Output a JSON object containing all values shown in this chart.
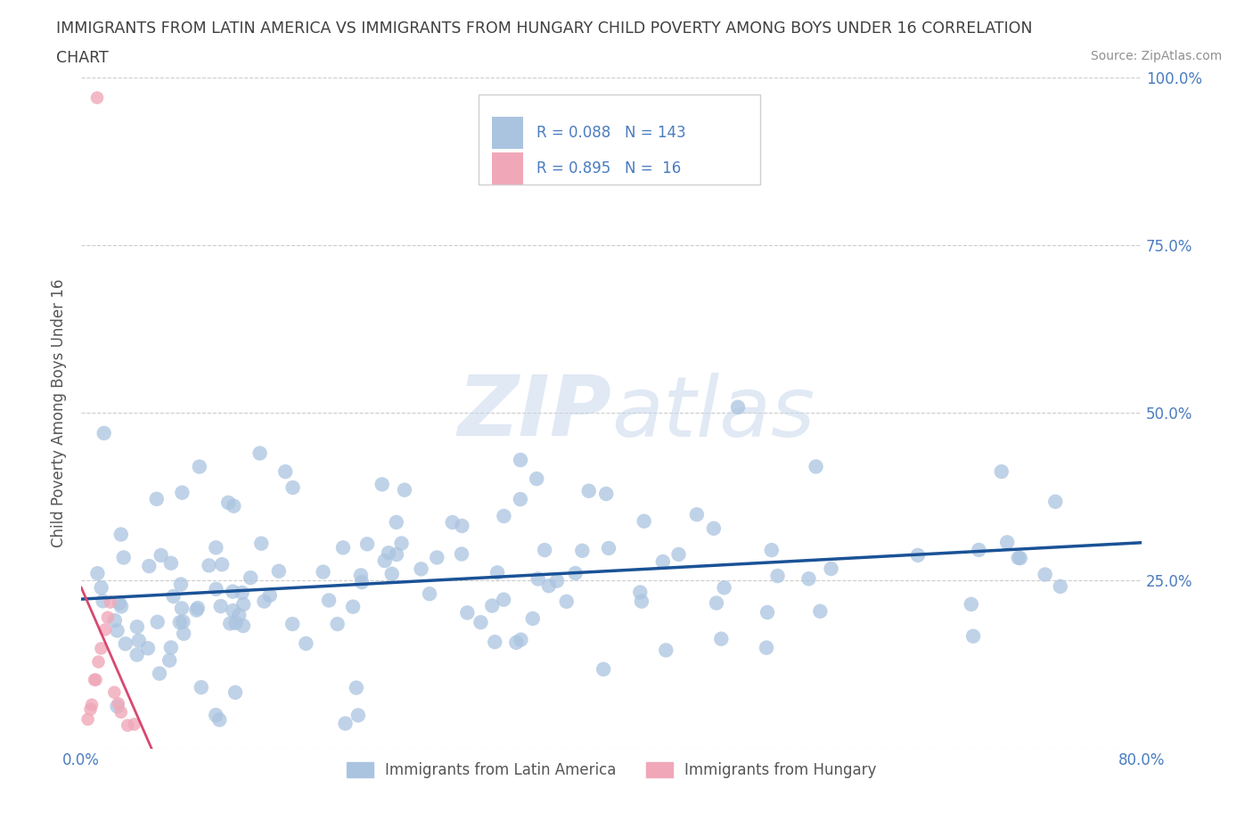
{
  "title_line1": "IMMIGRANTS FROM LATIN AMERICA VS IMMIGRANTS FROM HUNGARY CHILD POVERTY AMONG BOYS UNDER 16 CORRELATION",
  "title_line2": "CHART",
  "source_text": "Source: ZipAtlas.com",
  "ylabel": "Child Poverty Among Boys Under 16",
  "xlim": [
    0.0,
    0.8
  ],
  "ylim": [
    0.0,
    1.0
  ],
  "watermark": "ZIPatlas",
  "blue_color": "#aac4e0",
  "pink_color": "#f0a8b8",
  "blue_line_color": "#1a5296",
  "pink_line_color": "#d84870",
  "R_blue": 0.088,
  "N_blue": 143,
  "R_pink": 0.895,
  "N_pink": 16,
  "legend_label_blue": "Immigrants from Latin America",
  "legend_label_pink": "Immigrants from Hungary",
  "background_color": "#ffffff",
  "grid_color": "#cccccc",
  "title_color": "#404040",
  "axis_label_color": "#4a7cc0",
  "tick_label_color": "#4a7cc0",
  "ylabel_color": "#555555"
}
